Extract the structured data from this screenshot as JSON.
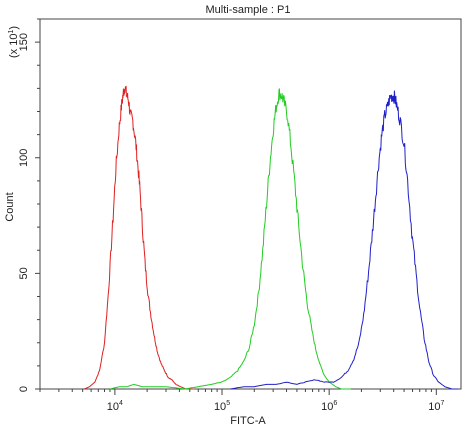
{
  "chart_data": {
    "type": "line",
    "title": "Multi-sample : P1",
    "xlabel": "FITC-A",
    "ylabel": "Count",
    "y_multiplier_label": "(x 10",
    "y_multiplier_exp": "1",
    "y_multiplier_close": ")",
    "x_scale": "log",
    "xlim": [
      2000,
      17000000
    ],
    "ylim": [
      0,
      160
    ],
    "x_ticks": [
      {
        "value": 10000,
        "base": "10",
        "exp": "4"
      },
      {
        "value": 100000,
        "base": "10",
        "exp": "5"
      },
      {
        "value": 1000000,
        "base": "10",
        "exp": "6"
      },
      {
        "value": 10000000,
        "base": "10",
        "exp": "7"
      }
    ],
    "y_ticks": [
      {
        "value": 0,
        "label": "0"
      },
      {
        "value": 50,
        "label": "50"
      },
      {
        "value": 100,
        "label": "100"
      },
      {
        "value": 150,
        "label": "150"
      }
    ],
    "grid": false,
    "legend": "none",
    "series": [
      {
        "color": "#e02020",
        "points": [
          [
            5200,
            0
          ],
          [
            5800,
            1
          ],
          [
            6500,
            3
          ],
          [
            7200,
            8
          ],
          [
            8000,
            20
          ],
          [
            8800,
            45
          ],
          [
            9500,
            70
          ],
          [
            10200,
            95
          ],
          [
            10900,
            112
          ],
          [
            11500,
            122
          ],
          [
            12000,
            128
          ],
          [
            12400,
            131
          ],
          [
            12900,
            127
          ],
          [
            13400,
            125
          ],
          [
            14000,
            118
          ],
          [
            14700,
            116
          ],
          [
            15500,
            108
          ],
          [
            16300,
            98
          ],
          [
            17200,
            85
          ],
          [
            18200,
            68
          ],
          [
            19300,
            52
          ],
          [
            20500,
            40
          ],
          [
            22000,
            30
          ],
          [
            23500,
            22
          ],
          [
            25000,
            16
          ],
          [
            27000,
            11
          ],
          [
            29000,
            8
          ],
          [
            31500,
            5
          ],
          [
            34000,
            4
          ],
          [
            37000,
            2
          ],
          [
            41000,
            1
          ],
          [
            46000,
            0
          ],
          [
            55000,
            0
          ]
        ]
      },
      {
        "color": "#22cc22",
        "points": [
          [
            9000,
            0
          ],
          [
            11000,
            1
          ],
          [
            13000,
            1
          ],
          [
            15000,
            2
          ],
          [
            18000,
            1
          ],
          [
            22000,
            1
          ],
          [
            30000,
            1
          ],
          [
            45000,
            0
          ],
          [
            60000,
            1
          ],
          [
            80000,
            2
          ],
          [
            100000,
            3
          ],
          [
            120000,
            5
          ],
          [
            140000,
            8
          ],
          [
            160000,
            12
          ],
          [
            180000,
            18
          ],
          [
            200000,
            28
          ],
          [
            220000,
            42
          ],
          [
            240000,
            60
          ],
          [
            260000,
            80
          ],
          [
            280000,
            98
          ],
          [
            300000,
            112
          ],
          [
            320000,
            122
          ],
          [
            340000,
            128
          ],
          [
            360000,
            127
          ],
          [
            380000,
            124
          ],
          [
            410000,
            118
          ],
          [
            440000,
            105
          ],
          [
            480000,
            88
          ],
          [
            520000,
            70
          ],
          [
            570000,
            52
          ],
          [
            620000,
            38
          ],
          [
            680000,
            27
          ],
          [
            750000,
            17
          ],
          [
            830000,
            10
          ],
          [
            900000,
            6
          ],
          [
            1000000,
            3
          ],
          [
            1150000,
            1
          ],
          [
            1300000,
            0
          ],
          [
            1600000,
            0
          ]
        ]
      },
      {
        "color": "#2020c8",
        "points": [
          [
            120000,
            0
          ],
          [
            160000,
            1
          ],
          [
            200000,
            1
          ],
          [
            260000,
            2
          ],
          [
            320000,
            2
          ],
          [
            400000,
            3
          ],
          [
            500000,
            2
          ],
          [
            600000,
            3
          ],
          [
            750000,
            4
          ],
          [
            900000,
            3
          ],
          [
            1100000,
            3
          ],
          [
            1300000,
            5
          ],
          [
            1500000,
            8
          ],
          [
            1700000,
            13
          ],
          [
            1900000,
            20
          ],
          [
            2100000,
            32
          ],
          [
            2300000,
            48
          ],
          [
            2500000,
            65
          ],
          [
            2700000,
            82
          ],
          [
            2900000,
            98
          ],
          [
            3100000,
            110
          ],
          [
            3300000,
            118
          ],
          [
            3500000,
            122
          ],
          [
            3700000,
            126
          ],
          [
            3900000,
            127
          ],
          [
            4100000,
            126
          ],
          [
            4300000,
            122
          ],
          [
            4600000,
            116
          ],
          [
            5000000,
            106
          ],
          [
            5400000,
            90
          ],
          [
            5900000,
            68
          ],
          [
            6400000,
            52
          ],
          [
            7000000,
            35
          ],
          [
            7700000,
            22
          ],
          [
            8500000,
            12
          ],
          [
            9400000,
            6
          ],
          [
            10500000,
            3
          ],
          [
            12000000,
            1
          ],
          [
            14000000,
            0
          ],
          [
            16000000,
            0
          ]
        ]
      }
    ]
  }
}
